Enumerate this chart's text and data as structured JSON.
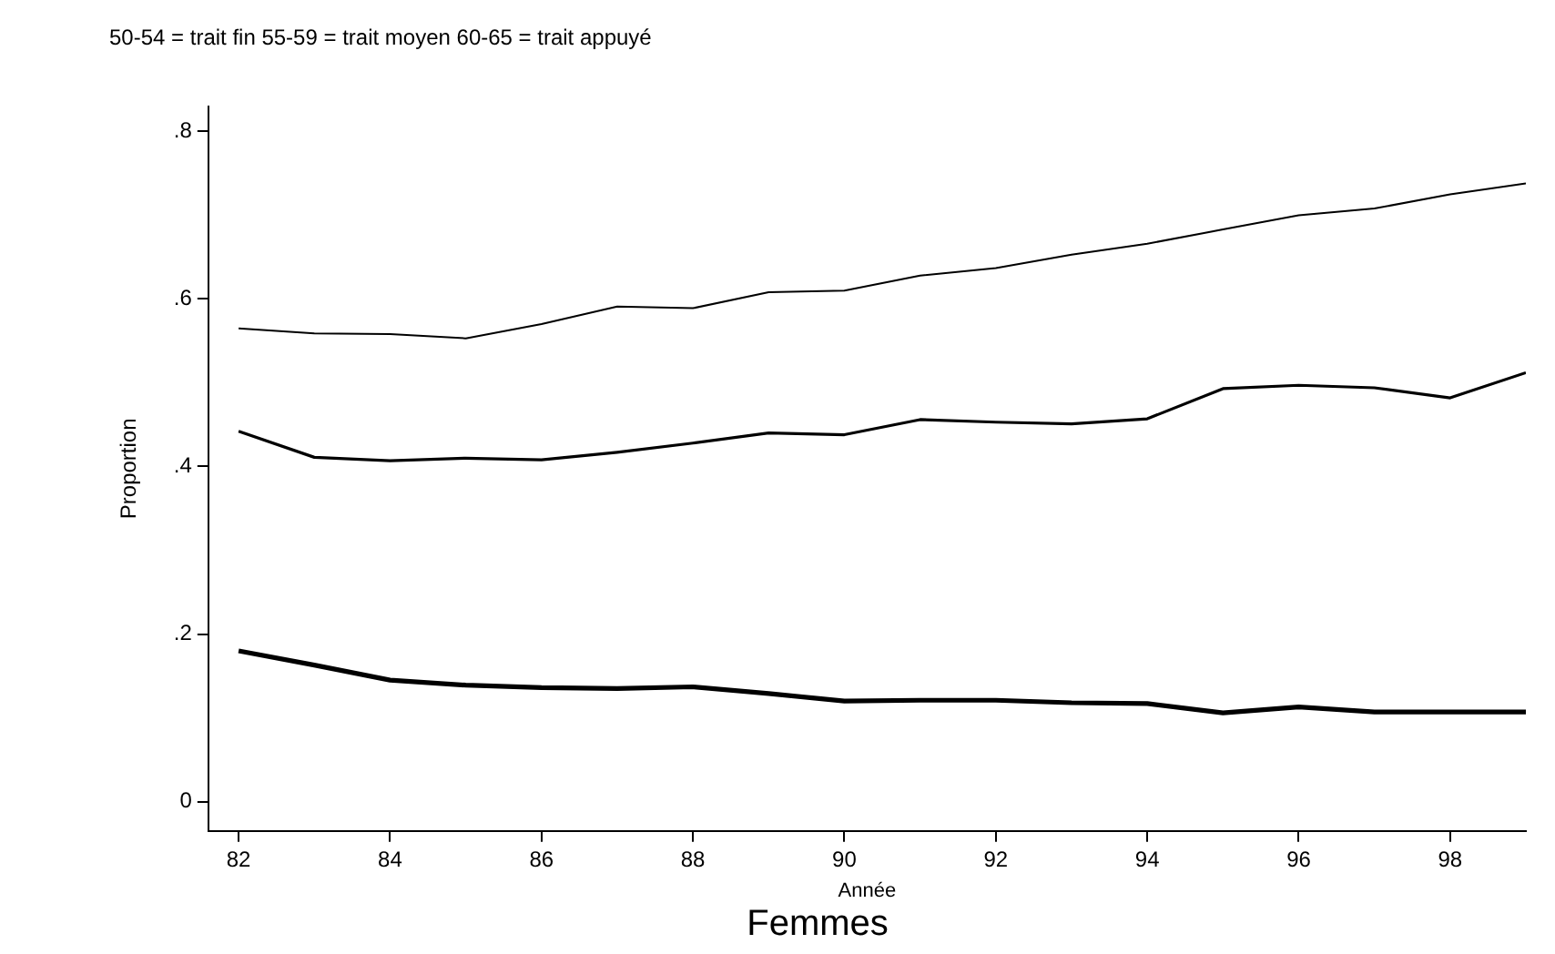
{
  "chart_data": {
    "type": "line",
    "title": "Femmes",
    "subtitle": "50-54 = trait fin 55-59 = trait moyen 60-65 = trait appuyé",
    "xlabel": "Année",
    "ylabel": "Proportion",
    "x": [
      82,
      83,
      84,
      85,
      86,
      87,
      88,
      89,
      90,
      91,
      92,
      93,
      94,
      95,
      96,
      97,
      98,
      99
    ],
    "series": [
      {
        "color": "#000000",
        "values": [
          0.565,
          0.559,
          0.558,
          0.553,
          0.57,
          0.591,
          0.589,
          0.608,
          0.61,
          0.628,
          0.637,
          0.653,
          0.666,
          0.683,
          0.7,
          0.708,
          0.725,
          0.738
        ]
      },
      {
        "color": "#000000",
        "values": [
          0.442,
          0.411,
          0.407,
          0.41,
          0.408,
          0.417,
          0.428,
          0.44,
          0.438,
          0.456,
          0.453,
          0.451,
          0.457,
          0.493,
          0.497,
          0.494,
          0.482,
          0.512
        ]
      },
      {
        "color": "#000000",
        "values": [
          0.18,
          0.163,
          0.145,
          0.139,
          0.136,
          0.135,
          0.137,
          0.129,
          0.12,
          0.121,
          0.121,
          0.118,
          0.117,
          0.106,
          0.113,
          0.107,
          0.107,
          0.107
        ]
      }
    ],
    "xlim": [
      81.6,
      99
    ],
    "xticks": [
      82,
      84,
      86,
      88,
      90,
      92,
      94,
      96,
      98
    ],
    "ylim": [
      -0.035,
      0.83
    ],
    "yticks": [
      {
        "value": 0,
        "label": "0"
      },
      {
        "value": 0.2,
        "label": ".2"
      },
      {
        "value": 0.4,
        "label": ".4"
      },
      {
        "value": 0.6,
        "label": ".6"
      },
      {
        "value": 0.8,
        "label": ".8"
      }
    ],
    "grid": false,
    "legend": false,
    "marker": "none",
    "line_style": "solid"
  }
}
